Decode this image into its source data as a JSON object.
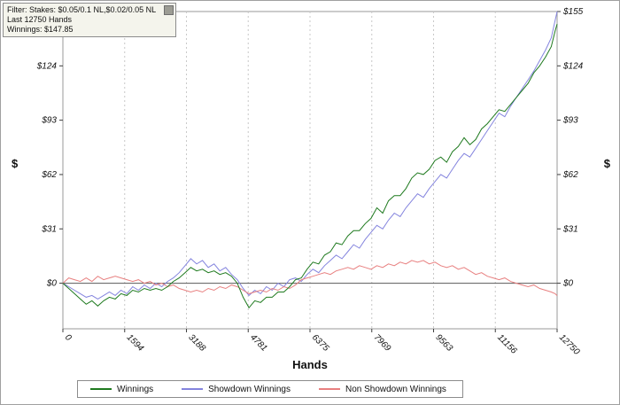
{
  "info": {
    "filter": "Filter: Stakes: $0.05/0.1 NL,$0.02/0.05 NL",
    "hands": "Last  12750 Hands",
    "winnings": "Winnings: $147.85"
  },
  "chart_data": {
    "type": "line",
    "title": "",
    "xlabel": "Hands",
    "ylabel": "$",
    "xlim": [
      0,
      12750
    ],
    "ylim": [
      -26,
      155
    ],
    "grid": "vertical-dashed",
    "legend_position": "bottom",
    "xticks": [
      {
        "v": 0,
        "label": "0"
      },
      {
        "v": 1594,
        "label": "1594"
      },
      {
        "v": 3188,
        "label": "3188"
      },
      {
        "v": 4781,
        "label": "4781"
      },
      {
        "v": 6375,
        "label": "6375"
      },
      {
        "v": 7969,
        "label": "7969"
      },
      {
        "v": 9563,
        "label": "9563"
      },
      {
        "v": 11156,
        "label": "11156"
      },
      {
        "v": 12750,
        "label": "12750"
      }
    ],
    "yticks": [
      {
        "v": 0,
        "label": "$0"
      },
      {
        "v": 31,
        "label": "$31"
      },
      {
        "v": 62,
        "label": "$62"
      },
      {
        "v": 93,
        "label": "$93"
      },
      {
        "v": 124,
        "label": "$124"
      },
      {
        "v": 155,
        "label": "$155"
      }
    ],
    "x": [
      0,
      150,
      300,
      450,
      600,
      750,
      900,
      1050,
      1200,
      1350,
      1500,
      1650,
      1800,
      1950,
      2100,
      2250,
      2400,
      2550,
      2700,
      2850,
      3000,
      3150,
      3300,
      3450,
      3600,
      3750,
      3900,
      4050,
      4200,
      4350,
      4500,
      4650,
      4800,
      4950,
      5100,
      5250,
      5400,
      5550,
      5700,
      5850,
      6000,
      6150,
      6300,
      6450,
      6600,
      6750,
      6900,
      7050,
      7200,
      7350,
      7500,
      7650,
      7800,
      7950,
      8100,
      8250,
      8400,
      8550,
      8700,
      8850,
      9000,
      9150,
      9300,
      9450,
      9600,
      9750,
      9900,
      10050,
      10200,
      10350,
      10500,
      10650,
      10800,
      10950,
      11100,
      11250,
      11400,
      11550,
      11700,
      11850,
      12000,
      12150,
      12300,
      12450,
      12600,
      12700,
      12750
    ],
    "series": [
      {
        "name": "Winnings",
        "color": "#1f7a1f",
        "values": [
          0,
          -3,
          -6,
          -9,
          -12,
          -10,
          -13,
          -10,
          -8,
          -9,
          -6,
          -7,
          -4,
          -5,
          -3,
          -4,
          -3,
          -4,
          -2,
          1,
          3,
          6,
          9,
          7,
          8,
          6,
          7,
          5,
          6,
          4,
          0,
          -8,
          -14,
          -10,
          -11,
          -8,
          -8,
          -5,
          -5,
          -2,
          2,
          3,
          8,
          12,
          11,
          16,
          18,
          23,
          22,
          27,
          30,
          30,
          34,
          37,
          43,
          40,
          47,
          50,
          50,
          54,
          60,
          63,
          62,
          65,
          70,
          72,
          69,
          75,
          78,
          83,
          79,
          82,
          88,
          91,
          95,
          99,
          98,
          102,
          106,
          110,
          114,
          120,
          124,
          129,
          135,
          144,
          147.85
        ]
      },
      {
        "name": "Showdown Winnings",
        "color": "#8484de",
        "values": [
          0,
          -2,
          -4,
          -6,
          -8,
          -7,
          -9,
          -7,
          -5,
          -7,
          -4,
          -6,
          -2,
          -4,
          -1,
          -3,
          0,
          -2,
          1,
          3,
          6,
          10,
          14,
          11,
          13,
          9,
          11,
          7,
          9,
          5,
          2,
          -3,
          -7,
          -4,
          -6,
          -2,
          -4,
          0,
          -2,
          2,
          3,
          1,
          5,
          8,
          6,
          10,
          13,
          16,
          14,
          18,
          22,
          20,
          25,
          29,
          33,
          31,
          36,
          40,
          38,
          43,
          47,
          51,
          49,
          54,
          58,
          62,
          60,
          65,
          70,
          74,
          72,
          77,
          82,
          87,
          92,
          97,
          95,
          101,
          106,
          111,
          116,
          121,
          127,
          133,
          140,
          150,
          155
        ]
      },
      {
        "name": "Non Showdown Winnings",
        "color": "#e88080",
        "values": [
          0,
          3,
          2,
          1,
          3,
          1,
          4,
          2,
          3,
          4,
          3,
          2,
          1,
          2,
          0,
          1,
          -1,
          0,
          -2,
          -1,
          -3,
          -4,
          -5,
          -4,
          -5,
          -3,
          -4,
          -2,
          -3,
          -1,
          -2,
          -4,
          -6,
          -5,
          -4,
          -5,
          -3,
          -4,
          -2,
          -3,
          -1,
          2,
          3,
          4,
          5,
          6,
          5,
          7,
          8,
          9,
          8,
          10,
          9,
          8,
          10,
          9,
          11,
          10,
          12,
          11,
          13,
          12,
          13,
          11,
          12,
          10,
          9,
          10,
          8,
          9,
          7,
          5,
          6,
          4,
          3,
          2,
          3,
          1,
          0,
          -1,
          -2,
          -1,
          -3,
          -4,
          -5,
          -6,
          -7.15
        ]
      }
    ],
    "colors": {
      "grid": "#c8c8c8",
      "zero_line": "#595959",
      "frame": "#9a9a9a",
      "tick": "#3c3c3c"
    }
  }
}
